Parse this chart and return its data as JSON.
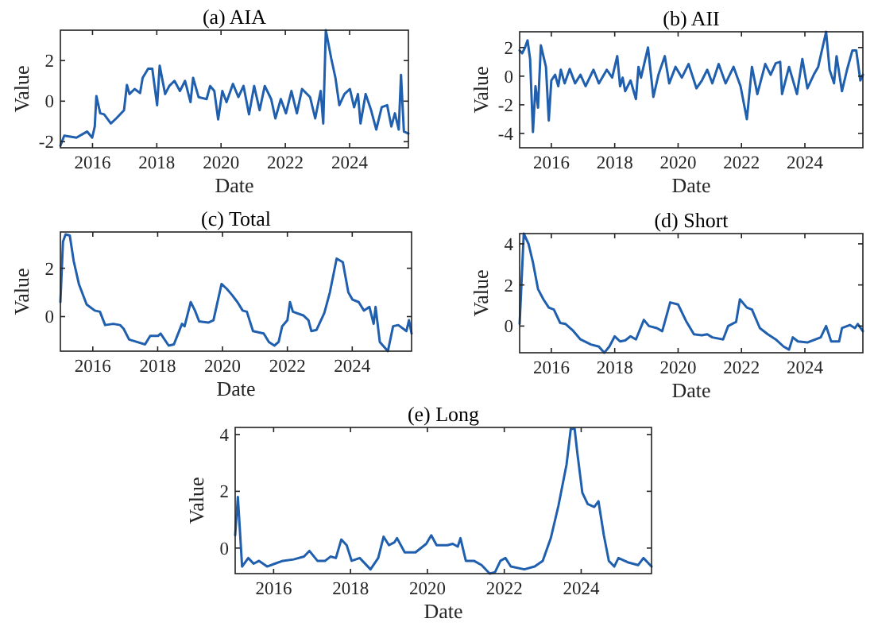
{
  "chart_data": [
    {
      "type": "line",
      "title": "(a) AIA",
      "xlabel": "Date",
      "ylabel": "Value",
      "color": "#1f5fae",
      "xlim": [
        2015,
        2025.83
      ],
      "xticks": [
        2016,
        2018,
        2020,
        2022,
        2024
      ],
      "ylim": [
        -2.3,
        3.5
      ],
      "yticks": [
        -2,
        0,
        2
      ],
      "x": [
        2015.0,
        2015.12,
        2015.5,
        2015.83,
        2015.99,
        2016.07,
        2016.12,
        2016.24,
        2016.36,
        2016.57,
        2016.74,
        2016.98,
        2017.07,
        2017.15,
        2017.31,
        2017.48,
        2017.56,
        2017.73,
        2017.86,
        2018.01,
        2018.09,
        2018.26,
        2018.39,
        2018.55,
        2018.72,
        2018.88,
        2019.05,
        2019.13,
        2019.3,
        2019.55,
        2019.66,
        2019.79,
        2019.91,
        2020.04,
        2020.17,
        2020.37,
        2020.54,
        2020.7,
        2020.87,
        2021.03,
        2021.2,
        2021.36,
        2021.56,
        2021.69,
        2021.86,
        2022.02,
        2022.19,
        2022.36,
        2022.52,
        2022.77,
        2022.93,
        2023.1,
        2023.18,
        2023.26,
        2023.43,
        2023.56,
        2023.68,
        2023.84,
        2024.01,
        2024.14,
        2024.26,
        2024.34,
        2024.5,
        2024.67,
        2024.83,
        2025.0,
        2025.17,
        2025.3,
        2025.41,
        2025.53,
        2025.6,
        2025.69,
        2025.83
      ],
      "values": [
        -2.2,
        -1.7,
        -1.8,
        -1.5,
        -1.8,
        -1.25,
        0.25,
        -0.6,
        -0.65,
        -1.1,
        -0.85,
        -0.45,
        0.8,
        0.35,
        0.6,
        0.4,
        1.15,
        1.6,
        1.6,
        -0.2,
        1.75,
        0.35,
        0.75,
        1.0,
        0.5,
        1.0,
        -0.05,
        1.15,
        0.2,
        0.1,
        0.75,
        0.5,
        -0.9,
        0.5,
        -0.05,
        0.85,
        0.2,
        0.75,
        -0.65,
        0.75,
        -0.45,
        0.75,
        0.1,
        -0.85,
        0.1,
        -0.6,
        0.5,
        -0.6,
        0.6,
        0.2,
        -0.85,
        0.5,
        -1.1,
        3.5,
        2.1,
        1.15,
        -0.2,
        0.35,
        0.6,
        -0.3,
        0.35,
        -1.1,
        0.35,
        -0.45,
        -1.4,
        -0.3,
        -0.2,
        -1.25,
        -0.6,
        -1.4,
        1.3,
        -1.5,
        -1.6
      ]
    },
    {
      "type": "line",
      "title": "(b) AII",
      "xlabel": "Date",
      "ylabel": "Value",
      "color": "#1f5fae",
      "xlim": [
        2015,
        2025.83
      ],
      "xticks": [
        2016,
        2018,
        2020,
        2022,
        2024
      ],
      "ylim": [
        -5,
        3.1
      ],
      "yticks": [
        -4,
        -2,
        0,
        2
      ],
      "x": [
        2015.0,
        2015.08,
        2015.17,
        2015.25,
        2015.33,
        2015.42,
        2015.5,
        2015.58,
        2015.67,
        2015.83,
        2015.92,
        2016.0,
        2016.12,
        2016.22,
        2016.3,
        2016.42,
        2016.58,
        2016.75,
        2016.92,
        2017.08,
        2017.33,
        2017.5,
        2017.75,
        2017.92,
        2018.08,
        2018.17,
        2018.25,
        2018.33,
        2018.5,
        2018.67,
        2018.75,
        2018.83,
        2019.05,
        2019.22,
        2019.38,
        2019.58,
        2019.72,
        2019.92,
        2020.12,
        2020.33,
        2020.58,
        2020.75,
        2020.92,
        2021.08,
        2021.28,
        2021.5,
        2021.75,
        2021.97,
        2022.17,
        2022.33,
        2022.5,
        2022.75,
        2022.92,
        2023.08,
        2023.22,
        2023.28,
        2023.5,
        2023.75,
        2023.92,
        2024.08,
        2024.28,
        2024.42,
        2024.67,
        2024.78,
        2024.92,
        2025.0,
        2025.17,
        2025.33,
        2025.5,
        2025.62,
        2025.75,
        2025.83
      ],
      "values": [
        1.8,
        1.6,
        2.0,
        2.5,
        1.2,
        -3.9,
        -0.7,
        -2.2,
        2.15,
        0.65,
        -3.1,
        -0.3,
        0.1,
        -0.7,
        0.45,
        -0.5,
        0.5,
        -0.5,
        0.1,
        -0.7,
        0.45,
        -0.5,
        0.45,
        -0.1,
        1.4,
        -0.7,
        -0.1,
        -1.05,
        -0.3,
        -1.6,
        0.65,
        -0.1,
        2.0,
        -1.45,
        0.1,
        1.4,
        -0.5,
        0.65,
        -0.1,
        0.85,
        -0.85,
        -0.3,
        0.45,
        -0.5,
        0.85,
        -0.5,
        0.65,
        -0.7,
        -3.0,
        0.65,
        -1.25,
        0.85,
        0.1,
        0.9,
        1.0,
        -1.25,
        0.65,
        -1.25,
        1.2,
        -0.85,
        0.1,
        0.65,
        3.1,
        0.45,
        -0.5,
        1.4,
        -1.05,
        0.45,
        1.8,
        1.8,
        -0.3,
        0.1
      ]
    },
    {
      "type": "line",
      "title": "(c) Total",
      "xlabel": "Date",
      "ylabel": "Value",
      "color": "#1f5fae",
      "xlim": [
        2015,
        2025.83
      ],
      "xticks": [
        2016,
        2018,
        2020,
        2022,
        2024
      ],
      "ylim": [
        -1.43,
        3.5
      ],
      "yticks": [
        0,
        2
      ],
      "x": [
        2015.0,
        2015.08,
        2015.16,
        2015.29,
        2015.41,
        2015.57,
        2015.81,
        2016.06,
        2016.22,
        2016.38,
        2016.63,
        2016.84,
        2016.95,
        2017.12,
        2017.36,
        2017.61,
        2017.77,
        2018.01,
        2018.09,
        2018.34,
        2018.5,
        2018.75,
        2018.83,
        2019.02,
        2019.15,
        2019.28,
        2019.56,
        2019.72,
        2019.97,
        2020.13,
        2020.29,
        2020.46,
        2020.62,
        2020.75,
        2020.94,
        2021.27,
        2021.43,
        2021.6,
        2021.73,
        2021.84,
        2022.0,
        2022.08,
        2022.17,
        2022.49,
        2022.65,
        2022.74,
        2022.9,
        2023.14,
        2023.31,
        2023.52,
        2023.71,
        2023.88,
        2024.01,
        2024.2,
        2024.36,
        2024.53,
        2024.66,
        2024.72,
        2024.85,
        2025.1,
        2025.26,
        2025.42,
        2025.67,
        2025.75,
        2025.83
      ],
      "values": [
        0.6,
        3.1,
        3.4,
        3.35,
        2.3,
        1.35,
        0.5,
        0.25,
        0.2,
        -0.35,
        -0.3,
        -0.35,
        -0.5,
        -0.95,
        -1.05,
        -1.15,
        -0.8,
        -0.8,
        -0.7,
        -1.2,
        -1.15,
        -0.3,
        -0.4,
        0.6,
        0.25,
        -0.2,
        -0.25,
        -0.15,
        1.35,
        1.15,
        0.9,
        0.6,
        0.25,
        0.2,
        -0.6,
        -0.7,
        -1.05,
        -1.2,
        -1.05,
        -0.4,
        -0.15,
        0.6,
        0.2,
        0.05,
        -0.15,
        -0.6,
        -0.55,
        0.15,
        1.0,
        2.4,
        2.25,
        1.0,
        0.7,
        0.6,
        0.25,
        0.4,
        -0.3,
        0.4,
        -1.05,
        -1.43,
        -0.4,
        -0.35,
        -0.6,
        -0.15,
        -0.7
      ]
    },
    {
      "type": "line",
      "title": "(d) Short",
      "xlabel": "Date",
      "ylabel": "Value",
      "color": "#1f5fae",
      "xlim": [
        2015,
        2025.83
      ],
      "xticks": [
        2016,
        2018,
        2020,
        2022,
        2024
      ],
      "ylim": [
        -1.3,
        4.5
      ],
      "yticks": [
        0,
        2,
        4
      ],
      "x": [
        2015.0,
        2015.13,
        2015.28,
        2015.42,
        2015.58,
        2015.75,
        2015.92,
        2016.08,
        2016.28,
        2016.45,
        2016.67,
        2016.92,
        2017.25,
        2017.5,
        2017.67,
        2017.83,
        2018.0,
        2018.17,
        2018.33,
        2018.5,
        2018.67,
        2018.92,
        2019.08,
        2019.33,
        2019.5,
        2019.75,
        2020.0,
        2020.25,
        2020.5,
        2020.75,
        2020.92,
        2021.08,
        2021.42,
        2021.58,
        2021.83,
        2021.95,
        2022.17,
        2022.33,
        2022.58,
        2022.83,
        2023.08,
        2023.33,
        2023.5,
        2023.62,
        2023.78,
        2024.08,
        2024.5,
        2024.67,
        2024.83,
        2025.08,
        2025.17,
        2025.42,
        2025.58,
        2025.67,
        2025.83
      ],
      "values": [
        0.1,
        4.5,
        4.0,
        3.1,
        1.8,
        1.3,
        0.9,
        0.8,
        0.15,
        0.1,
        -0.2,
        -0.65,
        -0.9,
        -1.0,
        -1.3,
        -1.0,
        -0.5,
        -0.75,
        -0.7,
        -0.5,
        -0.65,
        0.3,
        0.0,
        -0.1,
        -0.25,
        1.15,
        1.05,
        0.25,
        -0.4,
        -0.45,
        -0.4,
        -0.55,
        -0.65,
        0.0,
        0.2,
        1.3,
        0.9,
        0.8,
        -0.1,
        -0.4,
        -0.65,
        -1.0,
        -1.15,
        -0.55,
        -0.75,
        -0.8,
        -0.55,
        0.0,
        -0.75,
        -0.75,
        -0.1,
        0.05,
        -0.1,
        0.1,
        -0.25
      ]
    },
    {
      "type": "line",
      "title": "(e) Long",
      "xlabel": "Date",
      "ylabel": "Value",
      "color": "#1f5fae",
      "xlim": [
        2015,
        2025.83
      ],
      "xticks": [
        2016,
        2018,
        2020,
        2022,
        2024
      ],
      "ylim": [
        -0.9,
        4.25
      ],
      "yticks": [
        0,
        2,
        4
      ],
      "x": [
        2015.0,
        2015.07,
        2015.18,
        2015.34,
        2015.48,
        2015.62,
        2015.83,
        2016.03,
        2016.24,
        2016.52,
        2016.79,
        2016.93,
        2017.14,
        2017.34,
        2017.48,
        2017.62,
        2017.76,
        2017.9,
        2018.03,
        2018.24,
        2018.52,
        2018.72,
        2018.86,
        2019.0,
        2019.14,
        2019.21,
        2019.41,
        2019.69,
        2019.97,
        2020.1,
        2020.24,
        2020.52,
        2020.66,
        2020.79,
        2020.86,
        2021.0,
        2021.21,
        2021.41,
        2021.62,
        2021.76,
        2021.9,
        2022.03,
        2022.17,
        2022.52,
        2022.79,
        2023.0,
        2023.21,
        2023.41,
        2023.62,
        2023.73,
        2023.83,
        2023.9,
        2024.03,
        2024.17,
        2024.34,
        2024.45,
        2024.59,
        2024.72,
        2024.86,
        2024.97,
        2025.21,
        2025.48,
        2025.62,
        2025.83
      ],
      "values": [
        0.45,
        1.8,
        -0.65,
        -0.35,
        -0.55,
        -0.45,
        -0.65,
        -0.55,
        -0.45,
        -0.4,
        -0.3,
        -0.1,
        -0.45,
        -0.45,
        -0.3,
        -0.35,
        0.3,
        0.1,
        -0.45,
        -0.35,
        -0.75,
        -0.35,
        0.4,
        0.1,
        0.2,
        0.35,
        -0.15,
        -0.15,
        0.15,
        0.45,
        0.1,
        0.1,
        0.15,
        0.05,
        0.35,
        -0.45,
        -0.45,
        -0.6,
        -0.9,
        -0.85,
        -0.45,
        -0.35,
        -0.65,
        -0.75,
        -0.65,
        -0.45,
        0.35,
        1.5,
        2.95,
        4.2,
        4.2,
        3.35,
        1.95,
        1.55,
        1.45,
        1.65,
        0.45,
        -0.45,
        -0.65,
        -0.35,
        -0.5,
        -0.6,
        -0.35,
        -0.65
      ]
    }
  ]
}
